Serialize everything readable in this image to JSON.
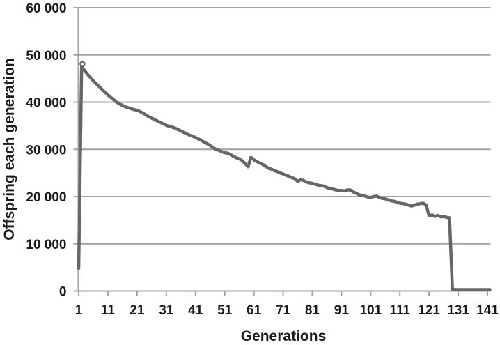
{
  "figure": {
    "background_color": "#ffffff",
    "text_color": "#1a1a1a"
  },
  "chart_data": {
    "type": "line",
    "title": "",
    "xlabel": "Generations",
    "ylabel": "Offspring each generation",
    "xlim": [
      1,
      141
    ],
    "ylim": [
      0,
      60000
    ],
    "grid": "horizontal",
    "legend": "none",
    "line_color": "#666666",
    "grid_color": "#a1a1a1",
    "axis_color": "#a1a1a1",
    "x_start": 1,
    "x_step": 1,
    "x_tick_positions": [
      1,
      11,
      21,
      31,
      41,
      51,
      61,
      71,
      81,
      91,
      101,
      111,
      121,
      131,
      141
    ],
    "x_tick_labels": [
      "1",
      "11",
      "21",
      "31",
      "41",
      "51",
      "61",
      "71",
      "81",
      "91",
      "101",
      "111",
      "121",
      "131",
      "141"
    ],
    "y_tick_positions": [
      0,
      10000,
      20000,
      30000,
      40000,
      50000,
      60000
    ],
    "y_tick_labels": [
      "0",
      "10 000",
      "20 000",
      "30 000",
      "40 000",
      "50 000",
      "60 000"
    ],
    "peak": {
      "generation": 2,
      "value": 47600,
      "has_loop_marker": true
    },
    "series": [
      {
        "name": "Offspring each generation",
        "values": [
          4800,
          47600,
          46700,
          45900,
          45200,
          44500,
          43900,
          43300,
          42700,
          42100,
          41500,
          41000,
          40500,
          40000,
          39600,
          39300,
          39000,
          38800,
          38600,
          38400,
          38300,
          38000,
          37700,
          37300,
          36900,
          36600,
          36300,
          36000,
          35700,
          35400,
          35100,
          34900,
          34700,
          34500,
          34200,
          33900,
          33600,
          33300,
          33000,
          32800,
          32500,
          32200,
          31900,
          31500,
          31200,
          30800,
          30400,
          30000,
          29800,
          29500,
          29300,
          29200,
          28900,
          28500,
          28200,
          28000,
          27600,
          27000,
          26300,
          28300,
          27800,
          27400,
          27100,
          26800,
          26400,
          26000,
          25800,
          25500,
          25300,
          25000,
          24800,
          24500,
          24300,
          24000,
          23800,
          23200,
          23600,
          23400,
          23100,
          22900,
          22800,
          22600,
          22400,
          22300,
          22200,
          21900,
          21700,
          21600,
          21400,
          21300,
          21300,
          21200,
          21400,
          21400,
          21000,
          20700,
          20400,
          20200,
          20100,
          19900,
          19800,
          20000,
          20100,
          19800,
          19600,
          19500,
          19300,
          19100,
          19000,
          18800,
          18600,
          18500,
          18400,
          18200,
          18000,
          18200,
          18400,
          18500,
          18600,
          18200,
          15900,
          16100,
          15800,
          16000,
          15700,
          15800,
          15600,
          15500,
          400,
          300,
          300,
          300,
          300,
          300,
          300,
          300,
          300,
          300,
          300,
          300,
          300
        ]
      }
    ]
  }
}
